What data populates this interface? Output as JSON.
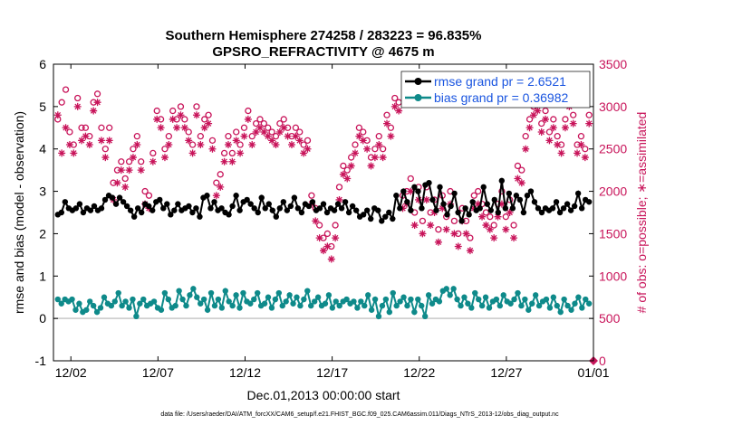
{
  "chart_data": {
    "type": "line",
    "title": "Southern Hemisphere 274258 / 283223 = 96.835%",
    "subtitle": "GPSRO_REFRACTIVITY @ 4675 m",
    "xlabel": "Dec.01,2013 00:00:00 start",
    "ylabel": "rmse and bias (model - observation)",
    "ylabel_right": "# of obs: o=possible; ∗=assimilated",
    "footnote": "data file: /Users/raeder/DAI/ATM_forcXX/CAM6_setup/f.e21.FHIST_BGC.f09_025.CAM6assim.011/Diags_NTrS_2013-12/obs_diag_output.nc",
    "x_range_days": [
      0,
      31
    ],
    "ylim": [
      -1,
      6
    ],
    "ylim_right": [
      0,
      3500
    ],
    "yticks": [
      "-1",
      "0",
      "1",
      "2",
      "3",
      "4",
      "5",
      "6"
    ],
    "yticks_right": [
      "0",
      "500",
      "1000",
      "1500",
      "2000",
      "2500",
      "3000",
      "3500"
    ],
    "xticks": [
      {
        "label": "12/02",
        "day": 1
      },
      {
        "label": "12/07",
        "day": 6
      },
      {
        "label": "12/12",
        "day": 11
      },
      {
        "label": "12/17",
        "day": 16
      },
      {
        "label": "12/22",
        "day": 21
      },
      {
        "label": "12/27",
        "day": 26
      },
      {
        "label": "01/01",
        "day": 31
      }
    ],
    "legend_placement": "top-right",
    "grid": false,
    "zero_line": 0,
    "colors": {
      "rmse": "#000000",
      "bias": "#0e8a8a",
      "obs": "#c8145a",
      "zero": "#c8c8c8",
      "legend_text": "#1a55e0"
    },
    "series": [
      {
        "name": "rmse grand pr = 2.6521",
        "axis": "left",
        "values": [
          2.45,
          2.5,
          2.75,
          2.6,
          2.55,
          2.6,
          2.7,
          2.5,
          2.6,
          2.55,
          2.65,
          2.55,
          2.6,
          2.8,
          2.9,
          2.85,
          2.7,
          2.85,
          2.75,
          2.65,
          2.55,
          2.4,
          2.6,
          2.5,
          2.7,
          2.65,
          2.55,
          2.75,
          2.8,
          2.6,
          2.7,
          2.45,
          2.55,
          2.7,
          2.55,
          2.6,
          2.65,
          2.5,
          2.6,
          2.4,
          2.85,
          2.9,
          2.6,
          2.75,
          2.55,
          2.6,
          2.5,
          2.45,
          2.65,
          2.9,
          2.55,
          2.75,
          2.8,
          2.7,
          2.6,
          2.5,
          2.85,
          2.6,
          2.7,
          2.55,
          2.4,
          2.6,
          2.75,
          2.55,
          2.65,
          2.85,
          2.6,
          2.5,
          2.7,
          2.65,
          2.75,
          2.55,
          2.6,
          2.7,
          2.5,
          2.6,
          2.55,
          2.7,
          2.6,
          2.75,
          2.5,
          2.65,
          2.55,
          2.4,
          2.45,
          2.55,
          2.35,
          2.6,
          2.55,
          2.3,
          2.4,
          2.5,
          2.35,
          2.9,
          2.6,
          3.0,
          2.75,
          2.55,
          3.1,
          3.0,
          2.6,
          3.15,
          3.2,
          2.8,
          2.55,
          3.1,
          2.7,
          2.45,
          2.65,
          2.95,
          2.5,
          2.3,
          2.6,
          2.45,
          2.75,
          2.55,
          2.6,
          3.1,
          2.7,
          2.55,
          2.8,
          2.5,
          3.25,
          2.6,
          2.95,
          2.6,
          2.9,
          2.8,
          2.5,
          2.9,
          3.0,
          2.75,
          2.6,
          2.5,
          2.6,
          2.55,
          2.6,
          2.75,
          2.5,
          2.6,
          2.7,
          2.55,
          2.65,
          2.95,
          2.6,
          2.8,
          2.75
        ]
      },
      {
        "name": "bias grand pr = 0.36982",
        "axis": "left",
        "values": [
          0.45,
          0.35,
          0.45,
          0.4,
          0.45,
          0.2,
          0.35,
          0.15,
          0.2,
          0.4,
          0.3,
          0.15,
          0.25,
          0.5,
          0.35,
          0.3,
          0.4,
          0.6,
          0.3,
          0.4,
          0.25,
          0.45,
          0.05,
          0.35,
          0.45,
          0.3,
          0.35,
          0.4,
          0.25,
          0.2,
          0.6,
          0.45,
          0.25,
          0.3,
          0.65,
          0.45,
          0.3,
          0.55,
          0.7,
          0.5,
          0.35,
          0.45,
          0.2,
          0.6,
          0.3,
          0.45,
          0.25,
          0.65,
          0.4,
          0.3,
          0.55,
          0.25,
          0.6,
          0.4,
          0.35,
          0.45,
          0.6,
          0.3,
          0.35,
          0.5,
          0.25,
          0.45,
          0.6,
          0.3,
          0.4,
          0.55,
          0.35,
          0.5,
          0.3,
          0.45,
          0.65,
          0.3,
          0.4,
          0.5,
          0.3,
          0.35,
          0.55,
          0.25,
          0.4,
          0.3,
          0.4,
          0.45,
          0.35,
          0.4,
          0.25,
          0.4,
          0.3,
          0.55,
          0.2,
          0.45,
          0.05,
          0.3,
          0.45,
          0.15,
          0.6,
          0.3,
          0.4,
          0.5,
          0.3,
          0.45,
          0.15,
          0.45,
          0.3,
          0.05,
          0.55,
          0.35,
          0.45,
          0.4,
          0.65,
          0.7,
          0.55,
          0.7,
          0.45,
          0.3,
          0.5,
          0.35,
          0.25,
          0.6,
          0.45,
          0.3,
          0.5,
          0.25,
          0.4,
          0.45,
          0.3,
          0.55,
          0.4,
          0.35,
          0.45,
          0.6,
          0.3,
          0.45,
          0.2,
          0.35,
          0.55,
          0.3,
          0.4,
          0.45,
          0.25,
          0.5,
          0.3,
          0.15,
          0.45,
          0.3,
          0.2,
          0.35,
          0.5,
          0.25,
          0.45,
          0.35
        ]
      },
      {
        "name": "possible",
        "axis": "right",
        "marker": "o",
        "values": [
          2850,
          3050,
          3200,
          2700,
          2550,
          3100,
          2750,
          2750,
          2650,
          3050,
          3150,
          2750,
          2500,
          2750,
          2100,
          2250,
          2350,
          2150,
          2350,
          2500,
          2650,
          2350,
          2000,
          1950,
          2450,
          2950,
          2850,
          2500,
          2650,
          2950,
          2850,
          3000,
          2850,
          2700,
          2550,
          3000,
          2650,
          2850,
          2900,
          2600,
          2100,
          2200,
          2450,
          2650,
          2450,
          2700,
          2550,
          2750,
          2950,
          2650,
          2800,
          2850,
          2800,
          2750,
          2700,
          2650,
          2800,
          2850,
          2750,
          2650,
          2750,
          2700,
          2550,
          2600,
          1950,
          1800,
          1600,
          1450,
          1500,
          1350,
          1600,
          2050,
          2300,
          2250,
          2400,
          2550,
          2750,
          2700,
          2600,
          2400,
          2500,
          2650,
          2500,
          2900,
          2750,
          3100,
          3050,
          1950,
          2000,
          2150,
          1750,
          2050,
          1650,
          2050,
          1750,
          1900,
          1550,
          1950,
          1700,
          2000,
          1650,
          1500,
          1800,
          1650,
          1450,
          1950,
          2000,
          1850,
          1750,
          1700,
          1600,
          1850,
          2000,
          1700,
          1900,
          1600,
          2300,
          2250,
          2650,
          2850,
          3000,
          3050,
          2800,
          2950,
          2700,
          2850,
          2650,
          2550,
          2850,
          3100,
          2900,
          2550,
          2650,
          2500,
          2900
        ]
      },
      {
        "name": "assimilated",
        "axis": "right",
        "marker": "*",
        "values": [
          2900,
          2450,
          2750,
          2550,
          2450,
          3000,
          2600,
          2650,
          2550,
          2950,
          3050,
          2600,
          2400,
          2600,
          1900,
          2100,
          2250,
          2050,
          2250,
          2400,
          2550,
          2250,
          1850,
          1800,
          2350,
          2850,
          2750,
          2400,
          2550,
          2850,
          2750,
          2900,
          2750,
          2600,
          2450,
          2900,
          2550,
          2750,
          2800,
          2500,
          1950,
          2050,
          2350,
          2550,
          2350,
          2600,
          2450,
          2650,
          2850,
          2550,
          2700,
          2750,
          2700,
          2650,
          2600,
          2550,
          2700,
          2750,
          2650,
          2550,
          2650,
          2600,
          2450,
          2500,
          1850,
          1650,
          1450,
          1300,
          1350,
          1200,
          1450,
          1900,
          2200,
          2150,
          2300,
          2450,
          2650,
          2600,
          2500,
          2300,
          2400,
          2550,
          2400,
          2800,
          2650,
          3000,
          2950,
          1800,
          1850,
          2000,
          1600,
          1900,
          1500,
          1900,
          1600,
          1750,
          1400,
          1800,
          1550,
          1850,
          1500,
          1350,
          1650,
          1500,
          1300,
          1800,
          1850,
          1700,
          1600,
          1550,
          1450,
          1700,
          1850,
          1550,
          1750,
          1450,
          2150,
          2100,
          2500,
          2750,
          2900,
          2950,
          2700,
          2850,
          2600,
          2750,
          2550,
          2450,
          2750,
          3000,
          2800,
          2450,
          2550,
          2400,
          2800
        ]
      }
    ]
  }
}
